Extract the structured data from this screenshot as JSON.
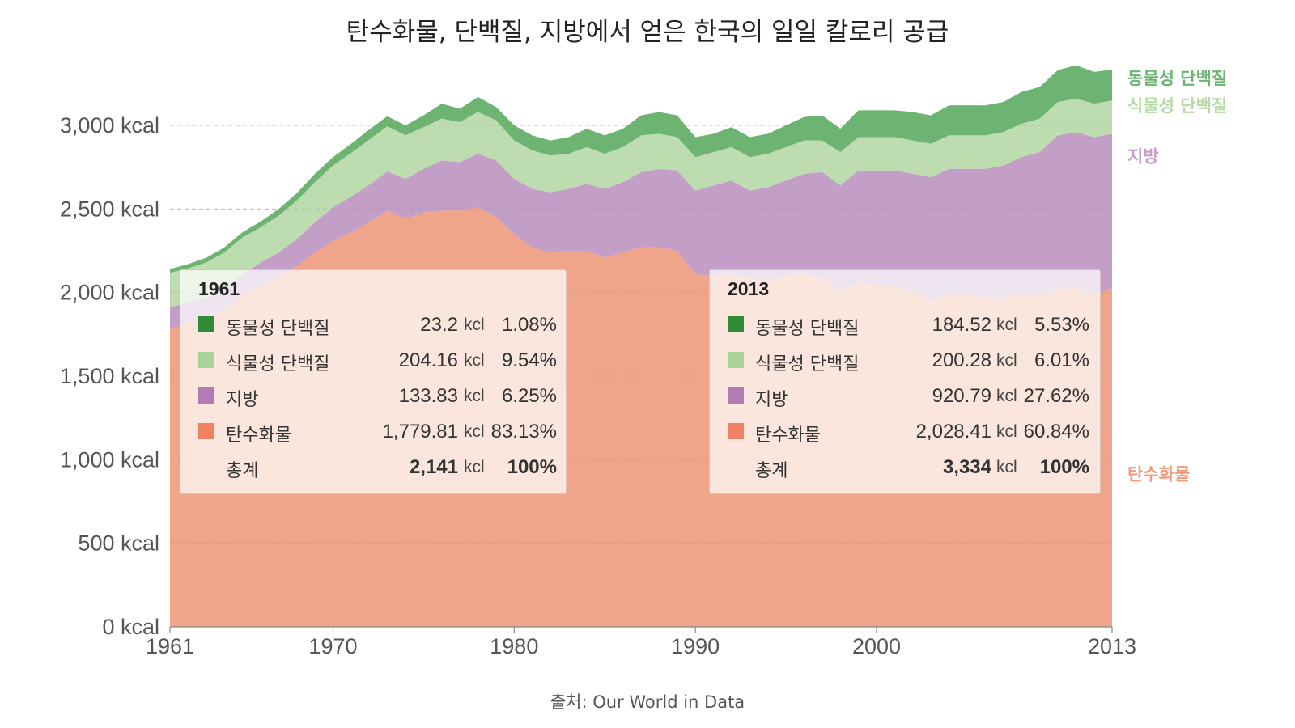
{
  "title": "탄수화물, 단백질, 지방에서 얻은 한국의 일일 칼로리 공급",
  "source": "출처: Our World in Data",
  "chart_data": {
    "type": "area",
    "stacked": true,
    "title": "탄수화물, 단백질, 지방에서 얻은 한국의 일일 칼로리 공급",
    "xlabel": "",
    "ylabel": "",
    "x_range": [
      1961,
      2013
    ],
    "ylim": [
      0,
      3500
    ],
    "yticks": [
      0,
      500,
      1000,
      1500,
      2000,
      2500,
      3000
    ],
    "ytick_labels": [
      "0 kcal",
      "500 kcal",
      "1,000 kcal",
      "1,500 kcal",
      "2,000 kcal",
      "2,500 kcal",
      "3,000 kcal"
    ],
    "xticks": [
      1961,
      1970,
      1980,
      1990,
      2000,
      2013
    ],
    "xtick_labels": [
      "1961",
      "1970",
      "1980",
      "1990",
      "2000",
      "2013"
    ],
    "grid": "horizontal dashed",
    "legend": "right, inline labels",
    "x": [
      1961,
      1962,
      1963,
      1964,
      1965,
      1966,
      1967,
      1968,
      1969,
      1970,
      1971,
      1972,
      1973,
      1974,
      1975,
      1976,
      1977,
      1978,
      1979,
      1980,
      1981,
      1982,
      1983,
      1984,
      1985,
      1986,
      1987,
      1988,
      1989,
      1990,
      1991,
      1992,
      1993,
      1994,
      1995,
      1996,
      1997,
      1998,
      1999,
      2000,
      2001,
      2002,
      2003,
      2004,
      2005,
      2006,
      2007,
      2008,
      2009,
      2010,
      2011,
      2012,
      2013
    ],
    "series": [
      {
        "name": "탄수화물",
        "color": "#f0a48a",
        "label_color": "#f19a7c",
        "values": [
          1780,
          1820,
          1850,
          1900,
          1980,
          2040,
          2090,
          2160,
          2240,
          2310,
          2360,
          2420,
          2490,
          2440,
          2480,
          2490,
          2490,
          2510,
          2450,
          2350,
          2270,
          2240,
          2250,
          2250,
          2210,
          2240,
          2270,
          2270,
          2250,
          2110,
          2100,
          2110,
          2090,
          2070,
          2100,
          2110,
          2090,
          2010,
          2060,
          2040,
          2040,
          2010,
          1950,
          1990,
          1990,
          1970,
          1960,
          1990,
          1970,
          2020,
          2030,
          1990,
          2028
        ]
      },
      {
        "name": "지방",
        "color": "#c39ec7",
        "label_color": "#c39ec7",
        "values": [
          134,
          120,
          120,
          120,
          130,
          140,
          150,
          160,
          180,
          200,
          215,
          225,
          235,
          240,
          260,
          300,
          290,
          320,
          340,
          330,
          350,
          360,
          370,
          400,
          410,
          420,
          450,
          470,
          480,
          500,
          540,
          560,
          520,
          560,
          570,
          600,
          630,
          630,
          670,
          690,
          690,
          700,
          740,
          750,
          750,
          770,
          800,
          820,
          870,
          920,
          930,
          940,
          921
        ]
      },
      {
        "name": "식물성 단백질",
        "color": "#bddcb0",
        "label_color": "#b5dba5",
        "values": [
          204,
          205,
          210,
          220,
          220,
          210,
          220,
          230,
          240,
          250,
          260,
          270,
          270,
          260,
          250,
          250,
          240,
          250,
          240,
          230,
          230,
          220,
          210,
          220,
          210,
          210,
          220,
          210,
          200,
          200,
          200,
          200,
          200,
          200,
          200,
          200,
          190,
          200,
          200,
          200,
          200,
          200,
          200,
          200,
          200,
          200,
          200,
          200,
          200,
          200,
          200,
          200,
          200
        ]
      },
      {
        "name": "동물성 단백질",
        "color": "#6db472",
        "label_color": "#6db472",
        "values": [
          23,
          25,
          28,
          30,
          30,
          35,
          40,
          45,
          50,
          50,
          55,
          60,
          60,
          60,
          70,
          90,
          80,
          90,
          80,
          90,
          90,
          90,
          100,
          110,
          110,
          110,
          120,
          130,
          130,
          120,
          110,
          120,
          120,
          120,
          130,
          140,
          150,
          140,
          160,
          160,
          160,
          170,
          170,
          180,
          180,
          180,
          180,
          190,
          190,
          190,
          200,
          190,
          185
        ]
      }
    ]
  },
  "panels": [
    {
      "year": "1961",
      "rows": [
        {
          "label": "동물성 단백질",
          "value": "23.2",
          "unit": "kcl",
          "pct": "1.08%",
          "color": "#2e8b36"
        },
        {
          "label": "식물성 단백질",
          "value": "204.16",
          "unit": "kcl",
          "pct": "9.54%",
          "color": "#a9d497"
        },
        {
          "label": "지방",
          "value": "133.83",
          "unit": "kcl",
          "pct": "6.25%",
          "color": "#b07cb4"
        },
        {
          "label": "탄수화물",
          "value": "1,779.81",
          "unit": "kcl",
          "pct": "83.13%",
          "color": "#ef8262"
        }
      ],
      "total": {
        "label": "총계",
        "value": "2,141",
        "unit": "kcl",
        "pct": "100%"
      }
    },
    {
      "year": "2013",
      "rows": [
        {
          "label": "동물성 단백질",
          "value": "184.52",
          "unit": "kcl",
          "pct": "5.53%",
          "color": "#2e8b36"
        },
        {
          "label": "식물성 단백질",
          "value": "200.28",
          "unit": "kcl",
          "pct": "6.01%",
          "color": "#a9d497"
        },
        {
          "label": "지방",
          "value": "920.79",
          "unit": "kcl",
          "pct": "27.62%",
          "color": "#b07cb4"
        },
        {
          "label": "탄수화물",
          "value": "2,028.41",
          "unit": "kcl",
          "pct": "60.84%",
          "color": "#ef8262"
        }
      ],
      "total": {
        "label": "총계",
        "value": "3,334",
        "unit": "kcl",
        "pct": "100%"
      }
    }
  ]
}
